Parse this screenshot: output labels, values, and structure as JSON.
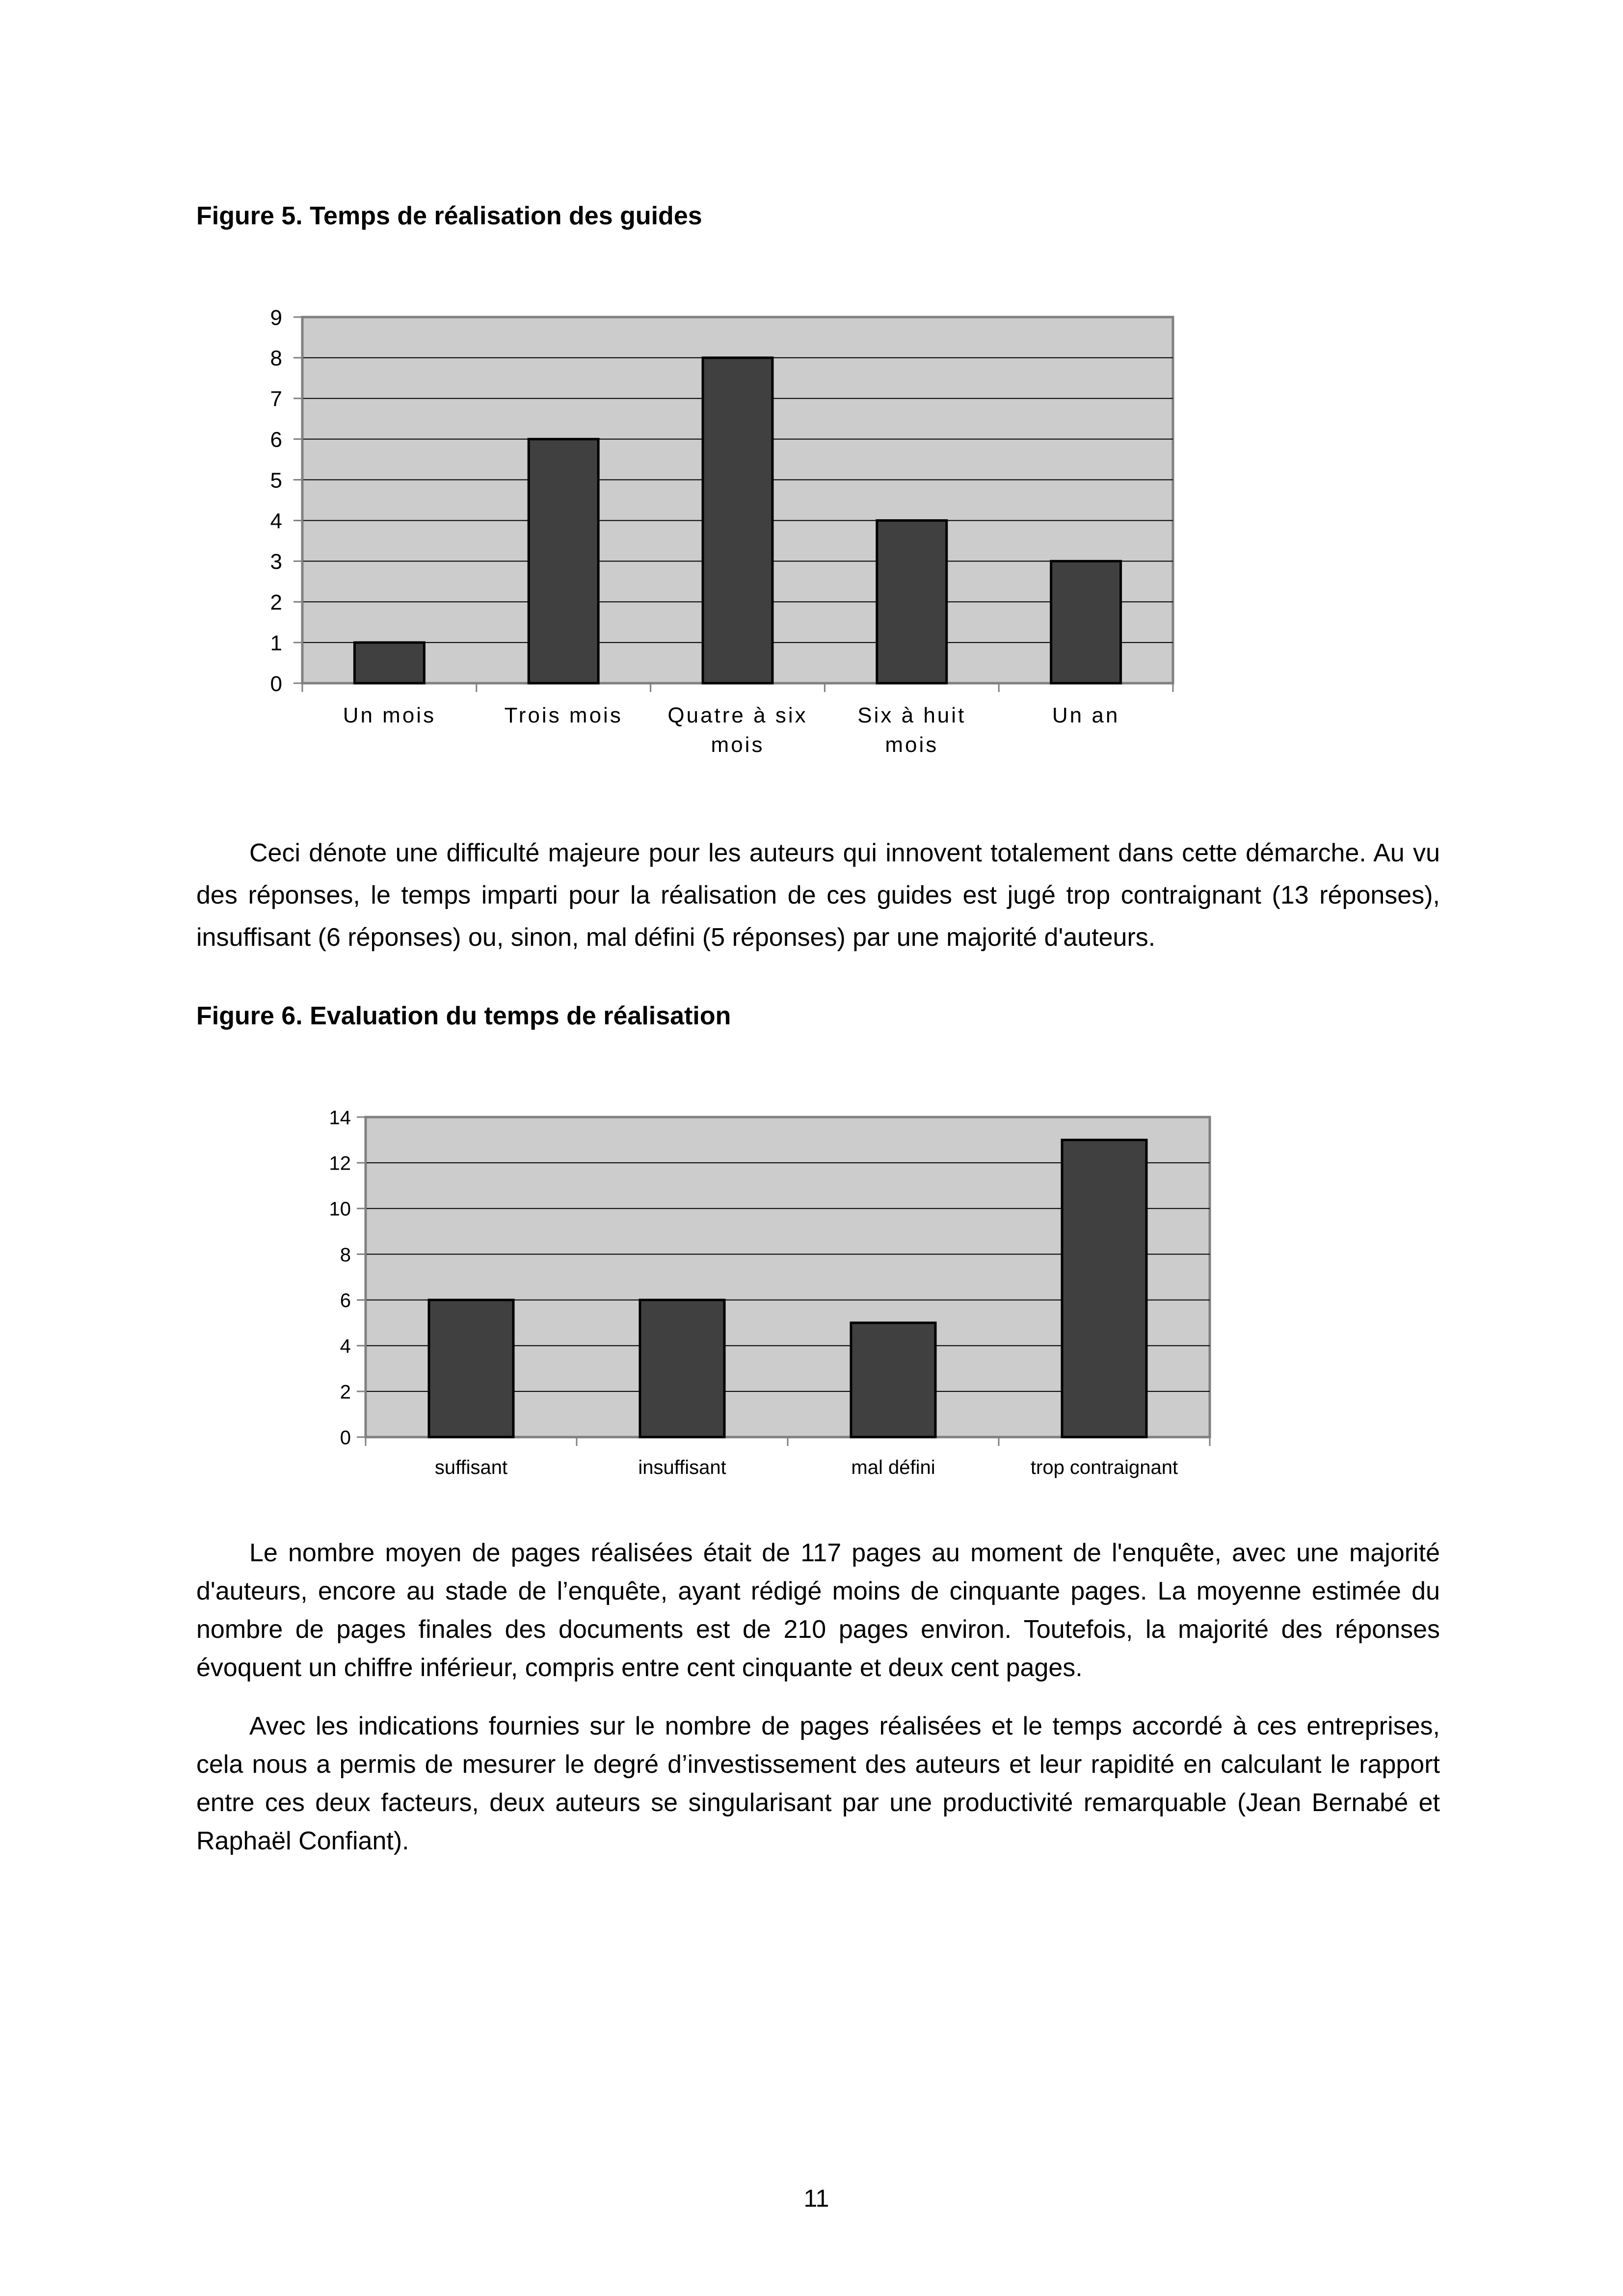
{
  "chart_data": [
    {
      "type": "bar",
      "title": "Figure 5. Temps de réalisation des guides",
      "categories": [
        "Un mois",
        "Trois mois",
        "Quatre à six mois",
        "Six à huit mois",
        "Un an"
      ],
      "category_lines": [
        [
          "Un mois"
        ],
        [
          "Trois mois"
        ],
        [
          "Quatre à six",
          "mois"
        ],
        [
          "Six à huit",
          "mois"
        ],
        [
          "Un an"
        ]
      ],
      "values": [
        1,
        6,
        8,
        4,
        3
      ],
      "xlabel": "",
      "ylabel": "",
      "ylim": [
        0,
        9
      ],
      "yticks": [
        0,
        1,
        2,
        3,
        4,
        5,
        6,
        7,
        8,
        9
      ],
      "grid": true,
      "legend": "none",
      "colors": {
        "bar": "#404040",
        "plot_bg": "#cccccc",
        "grid": "#000000"
      }
    },
    {
      "type": "bar",
      "title": "Figure 6. Evaluation du temps de réalisation",
      "categories": [
        "suffisant",
        "insuffisant",
        "mal défini",
        "trop contraignant"
      ],
      "category_lines": [
        [
          "suffisant"
        ],
        [
          "insuffisant"
        ],
        [
          "mal défini"
        ],
        [
          "trop contraignant"
        ]
      ],
      "values": [
        6,
        6,
        5,
        13
      ],
      "xlabel": "",
      "ylabel": "",
      "ylim": [
        0,
        14
      ],
      "yticks": [
        0,
        2,
        4,
        6,
        8,
        10,
        12,
        14
      ],
      "grid": true,
      "legend": "none",
      "colors": {
        "bar": "#404040",
        "plot_bg": "#cccccc",
        "grid": "#000000"
      }
    }
  ],
  "text": {
    "p1": "Ceci dénote une difficulté majeure pour les auteurs qui innovent totalement dans cette démarche. Au vu des réponses, le temps imparti pour la réalisation de ces guides est jugé trop contraignant (13 réponses), insuffisant (6 réponses) ou, sinon, mal défini (5 réponses) par une majorité d'auteurs.",
    "p2": "Le nombre moyen de pages réalisées était de 117 pages au moment de l'enquête, avec une majorité d'auteurs, encore au stade de l’enquête, ayant rédigé moins de cinquante pages. La moyenne estimée du nombre de pages finales des documents est de 210 pages environ. Toutefois, la majorité des réponses évoquent un chiffre inférieur, compris entre cent cinquante et deux cent pages.",
    "p3": "Avec les indications fournies sur le nombre de pages réalisées et le temps accordé à ces entreprises, cela nous a permis de mesurer le degré d’investissement des auteurs et leur rapidité en calculant le rapport entre ces deux facteurs, deux auteurs se singularisant par une productivité remarquable (Jean Bernabé et Raphaël Confiant).",
    "page_number": "11"
  }
}
